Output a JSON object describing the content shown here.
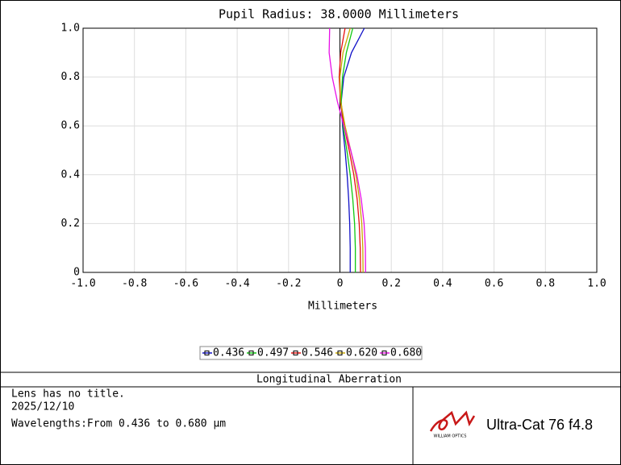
{
  "chart_data": {
    "type": "line",
    "title": "Pupil Radius: 38.0000 Millimeters",
    "x_label": "Millimeters",
    "y": [
      0,
      0.1,
      0.2,
      0.3,
      0.4,
      0.5,
      0.6,
      0.7,
      0.8,
      0.9,
      1.0
    ],
    "series": [
      {
        "name": "0.436",
        "color": "#1010c8",
        "values": [
          0.04,
          0.04,
          0.038,
          0.034,
          0.028,
          0.02,
          0.01,
          0.005,
          0.015,
          0.045,
          0.095
        ]
      },
      {
        "name": "0.497",
        "color": "#10c810",
        "values": [
          0.06,
          0.06,
          0.057,
          0.05,
          0.04,
          0.027,
          0.012,
          0.005,
          0.01,
          0.025,
          0.05
        ]
      },
      {
        "name": "0.546",
        "color": "#e81010",
        "values": [
          0.08,
          0.079,
          0.075,
          0.067,
          0.054,
          0.036,
          0.016,
          0.002,
          -0.003,
          0.003,
          0.02
        ]
      },
      {
        "name": "0.620",
        "color": "#c8a800",
        "values": [
          0.09,
          0.089,
          0.085,
          0.076,
          0.062,
          0.042,
          0.02,
          0.003,
          0.0,
          0.012,
          0.04
        ]
      },
      {
        "name": "0.680",
        "color": "#e810e8",
        "values": [
          0.1,
          0.099,
          0.094,
          0.083,
          0.066,
          0.042,
          0.015,
          -0.01,
          -0.03,
          -0.042,
          -0.04
        ]
      }
    ],
    "xlim": [
      -1,
      1
    ],
    "ylim": [
      0,
      1
    ],
    "xticks": [
      {
        "value": -1,
        "label": "-1.0"
      },
      {
        "value": -0.8,
        "label": "-0.8"
      },
      {
        "value": -0.6,
        "label": "-0.6"
      },
      {
        "value": -0.4,
        "label": "-0.4"
      },
      {
        "value": -0.2,
        "label": "-0.2"
      },
      0,
      0.2,
      0.4,
      0.6,
      0.8,
      {
        "value": 1,
        "label": "1.0"
      }
    ],
    "yticks": [
      0,
      0.2,
      0.4,
      0.6,
      0.8,
      {
        "value": 1,
        "label": "1.0"
      }
    ],
    "grid": true
  },
  "panel": {
    "title": "Longitudinal Aberration",
    "lines": [
      "Lens has no title.",
      "2025/12/10",
      "Wavelengths:From 0.436 to 0.680 µm"
    ],
    "logo_small": "WILLIAM OPTICS",
    "logo_text": "Ultra-Cat 76 f4.8"
  }
}
